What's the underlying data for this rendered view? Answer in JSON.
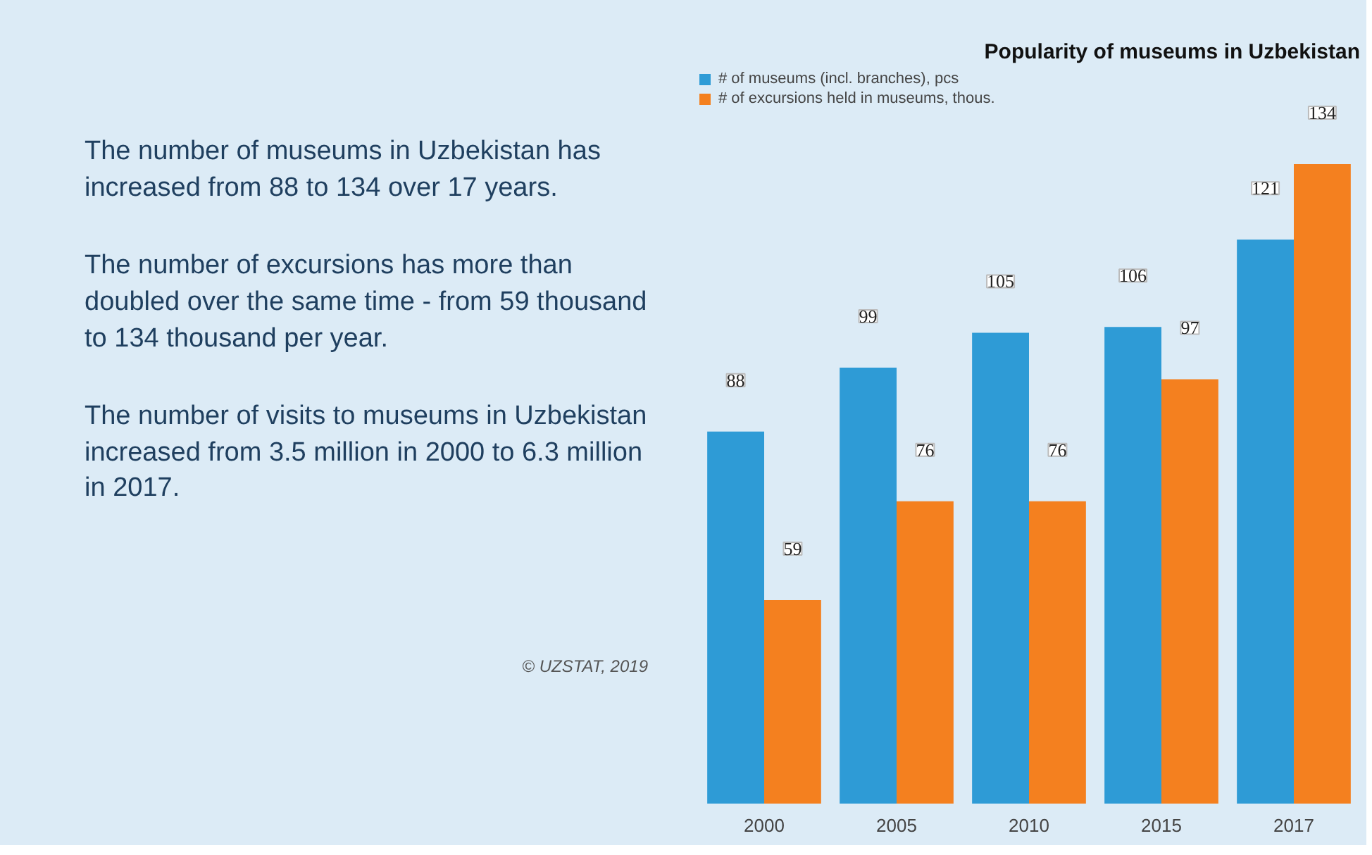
{
  "chart_data": {
    "type": "bar",
    "title": "Popularity of museums in Uzbekistan",
    "categories": [
      "2000",
      "2005",
      "2010",
      "2015",
      "2017"
    ],
    "series": [
      {
        "name": "# of museums (incl. branches), pcs",
        "color": "#2e9bd6",
        "values": [
          88,
          99,
          105,
          106,
          121
        ]
      },
      {
        "name": "# of excursions held in museums, thous.",
        "color": "#f4801f",
        "values": [
          59,
          76,
          76,
          97,
          134
        ]
      }
    ],
    "data_labels": true,
    "legend": "top left",
    "ylim": [
      24,
      150
    ],
    "annotations": [
      "The number of museums in Uzbekistan has increased from 88 to 134 over 17 years.",
      "The number of excursions has more than doubled over the same time - from 59 thousand to 134 thousand per year.",
      "The number of visits to museums in Uzbekistan increased from 3.5 million in 2000 to 6.3 million in 2017.",
      "© UZSTAT, 2019"
    ]
  }
}
